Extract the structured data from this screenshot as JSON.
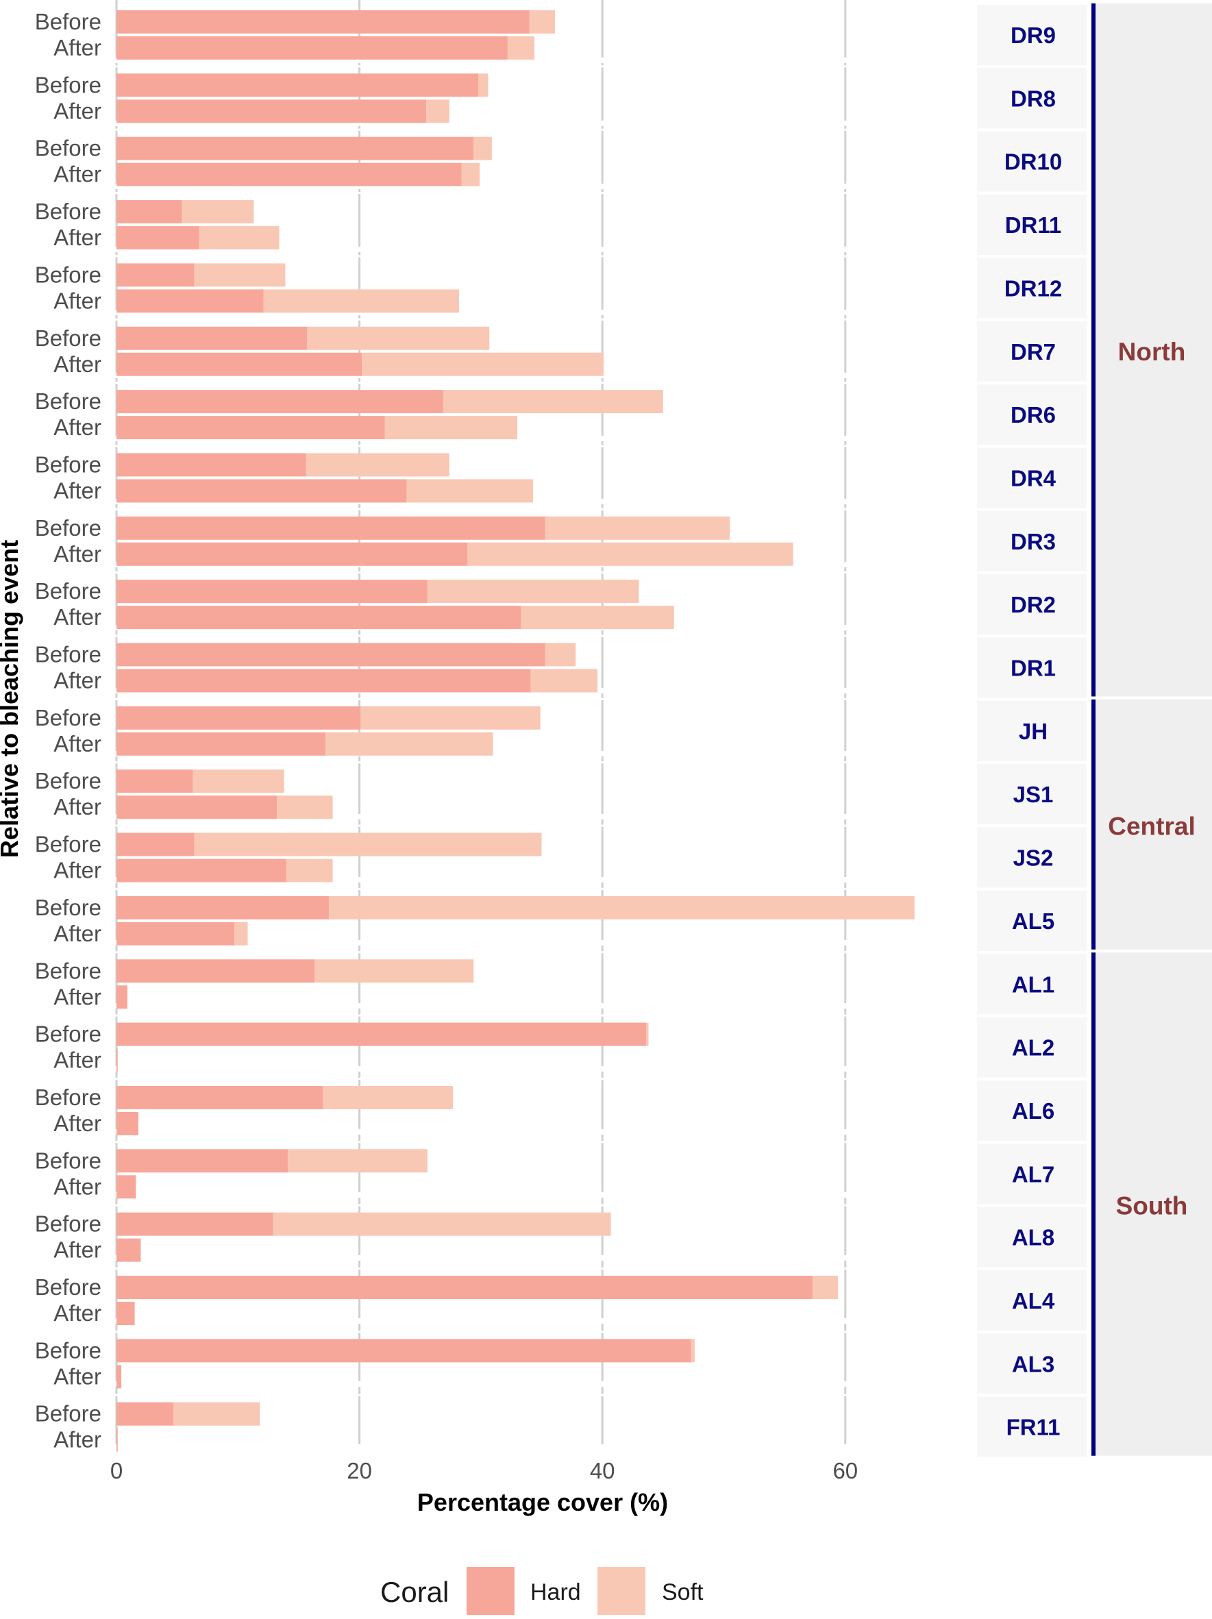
{
  "chart_data": {
    "type": "bar",
    "orientation": "horizontal",
    "stacked": true,
    "xlabel": "Percentage cover (%)",
    "ylabel": "Relative to bleaching event",
    "xlim": [
      0,
      66
    ],
    "xticks": [
      0,
      20,
      40,
      60
    ],
    "grid": true,
    "legend": {
      "title": "Coral",
      "placement": "bottom",
      "entries": [
        {
          "name": "Hard",
          "color": "#f7a799"
        },
        {
          "name": "Soft",
          "color": "#f9c8b5"
        }
      ]
    },
    "periods": [
      "Before",
      "After"
    ],
    "series": [
      {
        "name": "Hard",
        "color": "#f7a799"
      },
      {
        "name": "Soft",
        "color": "#f9c8b5"
      }
    ],
    "sites": [
      {
        "site": "DR9",
        "before": {
          "hard": 34.0,
          "soft": 2.1
        },
        "after": {
          "hard": 32.2,
          "soft": 2.2
        }
      },
      {
        "site": "DR8",
        "before": {
          "hard": 29.8,
          "soft": 0.8
        },
        "after": {
          "hard": 25.5,
          "soft": 1.9
        }
      },
      {
        "site": "DR10",
        "before": {
          "hard": 29.4,
          "soft": 1.5
        },
        "after": {
          "hard": 28.4,
          "soft": 1.5
        }
      },
      {
        "site": "DR11",
        "before": {
          "hard": 5.4,
          "soft": 5.9
        },
        "after": {
          "hard": 6.8,
          "soft": 6.6
        }
      },
      {
        "site": "DR12",
        "before": {
          "hard": 6.4,
          "soft": 7.5
        },
        "after": {
          "hard": 12.1,
          "soft": 16.1
        }
      },
      {
        "site": "DR7",
        "before": {
          "hard": 15.7,
          "soft": 15.0
        },
        "after": {
          "hard": 20.2,
          "soft": 19.9
        }
      },
      {
        "site": "DR6",
        "before": {
          "hard": 26.9,
          "soft": 18.1
        },
        "after": {
          "hard": 22.1,
          "soft": 10.9
        }
      },
      {
        "site": "DR4",
        "before": {
          "hard": 15.6,
          "soft": 11.8
        },
        "after": {
          "hard": 23.9,
          "soft": 10.4
        }
      },
      {
        "site": "DR3",
        "before": {
          "hard": 35.3,
          "soft": 15.2
        },
        "after": {
          "hard": 28.9,
          "soft": 26.8
        }
      },
      {
        "site": "DR2",
        "before": {
          "hard": 25.6,
          "soft": 17.4
        },
        "after": {
          "hard": 33.3,
          "soft": 12.6
        }
      },
      {
        "site": "DR1",
        "before": {
          "hard": 35.3,
          "soft": 2.5
        },
        "after": {
          "hard": 34.1,
          "soft": 5.5
        }
      },
      {
        "site": "JH",
        "before": {
          "hard": 20.1,
          "soft": 14.8
        },
        "after": {
          "hard": 17.2,
          "soft": 13.8
        }
      },
      {
        "site": "JS1",
        "before": {
          "hard": 6.3,
          "soft": 7.5
        },
        "after": {
          "hard": 13.2,
          "soft": 4.6
        }
      },
      {
        "site": "JS2",
        "before": {
          "hard": 6.4,
          "soft": 28.6
        },
        "after": {
          "hard": 14.0,
          "soft": 3.8
        }
      },
      {
        "site": "AL5",
        "before": {
          "hard": 17.5,
          "soft": 48.2
        },
        "after": {
          "hard": 9.7,
          "soft": 1.1
        }
      },
      {
        "site": "AL1",
        "before": {
          "hard": 16.3,
          "soft": 13.1
        },
        "after": {
          "hard": 0.9,
          "soft": 0.0
        }
      },
      {
        "site": "AL2",
        "before": {
          "hard": 43.6,
          "soft": 0.2
        },
        "after": {
          "hard": 0.1,
          "soft": 0.0
        }
      },
      {
        "site": "AL6",
        "before": {
          "hard": 17.0,
          "soft": 10.7
        },
        "after": {
          "hard": 1.8,
          "soft": 0.0
        }
      },
      {
        "site": "AL7",
        "before": {
          "hard": 14.1,
          "soft": 11.5
        },
        "after": {
          "hard": 1.6,
          "soft": 0.0
        }
      },
      {
        "site": "AL8",
        "before": {
          "hard": 12.9,
          "soft": 27.8
        },
        "after": {
          "hard": 2.0,
          "soft": 0.0
        }
      },
      {
        "site": "AL4",
        "before": {
          "hard": 57.3,
          "soft": 2.1
        },
        "after": {
          "hard": 1.5,
          "soft": 0.0
        }
      },
      {
        "site": "AL3",
        "before": {
          "hard": 47.3,
          "soft": 0.3
        },
        "after": {
          "hard": 0.4,
          "soft": 0.0
        }
      },
      {
        "site": "FR11",
        "before": {
          "hard": 4.7,
          "soft": 7.1
        },
        "after": {
          "hard": 0.1,
          "soft": 0.0
        }
      }
    ],
    "regions": [
      {
        "name": "North",
        "first_site": 0,
        "last_site": 10
      },
      {
        "name": "Central",
        "first_site": 11,
        "last_site": 14
      },
      {
        "name": "South",
        "first_site": 15,
        "last_site": 22
      }
    ]
  },
  "colors": {
    "site_text": "#0b0b80",
    "region_text": "#8b3a3a",
    "region_bar": "#00007f",
    "grid": "#d0d0d0",
    "strip_bg": "#f7f7f7",
    "region_bg": "#efefef"
  }
}
